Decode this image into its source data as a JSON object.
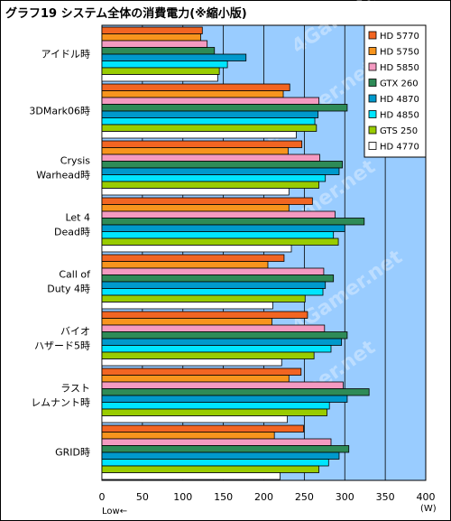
{
  "title": "グラフ19 システム全体の消費電力(※縮小版)",
  "watermark": "4Gamer.net",
  "x_axis_note_left": "Low←",
  "x_axis_note_right": "(W)",
  "colors": {
    "plot_background": "#99ccff",
    "gridline": "#000000"
  },
  "chart_data": {
    "type": "bar",
    "orientation": "horizontal",
    "title": "グラフ19 システム全体の消費電力(※縮小版)",
    "xlabel": "",
    "x_unit": "(W)",
    "xlim": [
      0,
      400
    ],
    "xticks": [
      0,
      50,
      100,
      150,
      200,
      250,
      300,
      350,
      400
    ],
    "grid": "vertical",
    "legend_position": "top-right",
    "categories": [
      "アイドル時",
      "3DMark06時",
      "Crysis Warhead時",
      "Let 4 Dead時",
      "Call of Duty 4時",
      "バイオハザード5時",
      "ラストレムナント時",
      "GRID時"
    ],
    "category_lines": [
      [
        "アイドル時"
      ],
      [
        "3DMark06時"
      ],
      [
        "Crysis",
        "Warhead時"
      ],
      [
        "Let 4",
        "Dead時"
      ],
      [
        "Call of",
        "Duty 4時"
      ],
      [
        "バイオ",
        "ハザード5時"
      ],
      [
        "ラスト",
        "レムナント時"
      ],
      [
        "GRID時"
      ]
    ],
    "series": [
      {
        "name": "HD 5770",
        "color": "#f26522",
        "values": [
          124,
          232,
          247,
          260,
          225,
          254,
          246,
          249
        ]
      },
      {
        "name": "HD 5750",
        "color": "#f7941d",
        "values": [
          122,
          224,
          230,
          231,
          205,
          210,
          231,
          213
        ]
      },
      {
        "name": "HD 5850",
        "color": "#f49ac1",
        "values": [
          130,
          268,
          269,
          288,
          274,
          275,
          298,
          283
        ]
      },
      {
        "name": "GTX 260",
        "color": "#2e8b57",
        "values": [
          139,
          303,
          297,
          324,
          286,
          303,
          330,
          305
        ]
      },
      {
        "name": "HD 4870",
        "color": "#0099cc",
        "values": [
          178,
          267,
          293,
          300,
          276,
          296,
          303,
          293
        ]
      },
      {
        "name": "HD 4850",
        "color": "#00e5ff",
        "values": [
          155,
          263,
          276,
          286,
          273,
          283,
          281,
          280
        ]
      },
      {
        "name": "GTS 250",
        "color": "#99cc00",
        "values": [
          145,
          265,
          268,
          292,
          251,
          262,
          278,
          268
        ]
      },
      {
        "name": "HD 4770",
        "color": "#ffffff",
        "values": [
          143,
          240,
          231,
          234,
          211,
          222,
          229,
          220
        ]
      }
    ]
  }
}
